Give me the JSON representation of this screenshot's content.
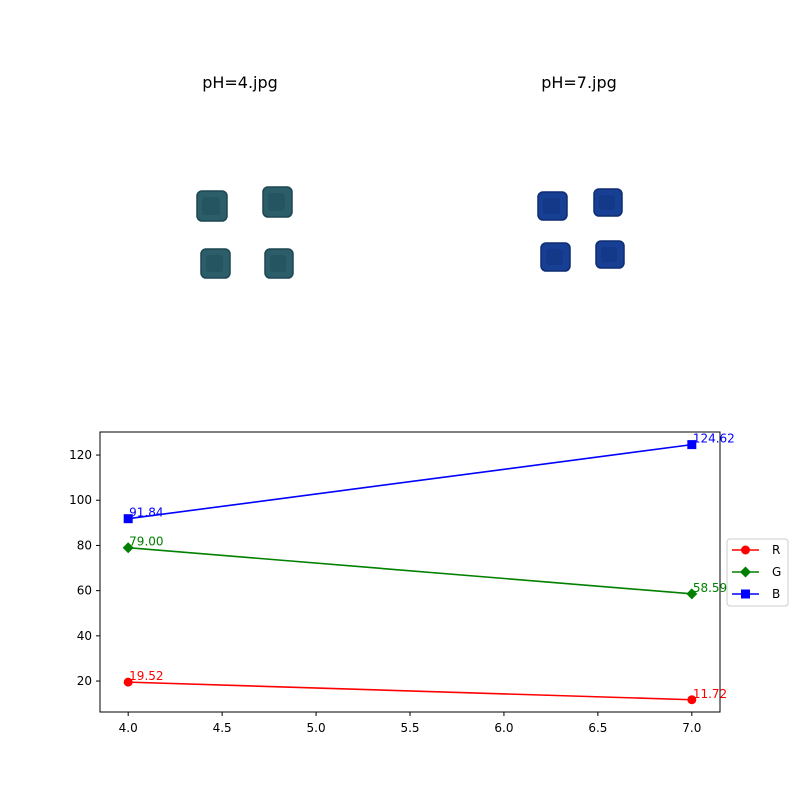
{
  "images": [
    {
      "title": "pH=4.jpg",
      "color": "#2c5e6a",
      "dark": "#1d4652"
    },
    {
      "title": "pH=7.jpg",
      "color": "#173f94",
      "dark": "#0f2d72"
    }
  ],
  "chart_data": {
    "type": "line",
    "title": "",
    "xlabel": "",
    "ylabel": "",
    "xlim": [
      3.85,
      7.15
    ],
    "ylim": [
      6.3,
      130.2
    ],
    "x_ticks": [
      "4.0",
      "4.5",
      "5.0",
      "5.5",
      "6.0",
      "6.5",
      "7.0"
    ],
    "y_ticks": [
      "20",
      "40",
      "60",
      "80",
      "100",
      "120"
    ],
    "grid": false,
    "legend_position": "right",
    "series": [
      {
        "name": "R",
        "color": "#ff0000",
        "marker": "circle",
        "x": [
          4,
          7
        ],
        "values": [
          19.52,
          11.72
        ],
        "labels": [
          "19.52",
          "11.72"
        ]
      },
      {
        "name": "G",
        "color": "#008000",
        "marker": "diamond",
        "x": [
          4,
          7
        ],
        "values": [
          79.0,
          58.59
        ],
        "labels": [
          "79.00",
          "58.59"
        ]
      },
      {
        "name": "B",
        "color": "#0000ff",
        "marker": "square",
        "x": [
          4,
          7
        ],
        "values": [
          91.84,
          124.62
        ],
        "labels": [
          "91.84",
          "124.62"
        ]
      }
    ]
  }
}
